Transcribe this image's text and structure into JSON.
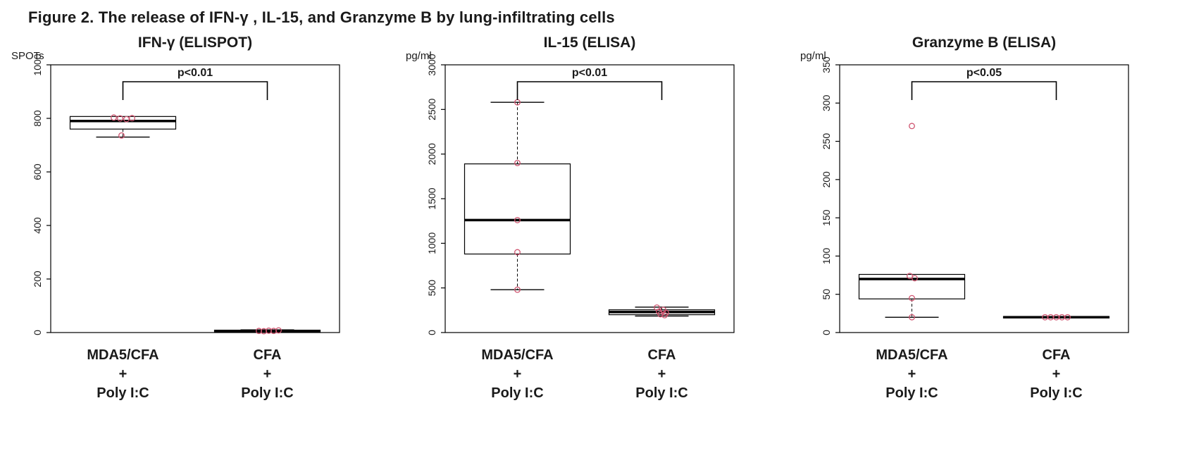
{
  "figure_title": "Figure 2. The release of IFN-γ , IL-15, and Granzyme B by lung-infiltrating cells",
  "colors": {
    "point": "#cf5570",
    "axis": "#000000",
    "text": "#1a1a1a",
    "background": "#ffffff"
  },
  "chart_data": [
    {
      "type": "boxplot",
      "title": "IFN-γ (ELISPOT)",
      "ylabel": "SPOTs",
      "ylim": [
        0,
        1000
      ],
      "yticks": [
        0,
        200,
        400,
        600,
        800,
        1000
      ],
      "p_label": "p<0.01",
      "groups": [
        {
          "label_lines": [
            "MDA5/CFA",
            "+",
            "Poly I:C"
          ],
          "stats": {
            "whisker_low": 730,
            "q1": 760,
            "median": 790,
            "q3": 807,
            "whisker_high": 807
          },
          "points": [
            803,
            800,
            797,
            801,
            736
          ],
          "dx": [
            -13,
            -4,
            5,
            13,
            -2
          ]
        },
        {
          "label_lines": [
            "CFA",
            "+",
            "Poly I:C"
          ],
          "stats": {
            "whisker_low": 2,
            "q1": 3,
            "median": 6,
            "q3": 9,
            "whisker_high": 10
          },
          "points": [
            6,
            5,
            7,
            6,
            8
          ],
          "dx": [
            -12,
            -5,
            2,
            9,
            16
          ]
        }
      ]
    },
    {
      "type": "boxplot",
      "title": "IL-15 (ELISA)",
      "ylabel": "pg/ml",
      "ylim": [
        0,
        3000
      ],
      "yticks": [
        0,
        500,
        1000,
        1500,
        2000,
        2500,
        3000
      ],
      "p_label": "p<0.01",
      "groups": [
        {
          "label_lines": [
            "MDA5/CFA",
            "+",
            "Poly I:C"
          ],
          "stats": {
            "whisker_low": 480,
            "q1": 880,
            "median": 1260,
            "q3": 1890,
            "whisker_high": 2580
          },
          "points": [
            2580,
            1900,
            1260,
            900,
            480
          ],
          "dx": [
            0,
            0,
            0,
            0,
            0
          ]
        },
        {
          "label_lines": [
            "CFA",
            "+",
            "Poly I:C"
          ],
          "stats": {
            "whisker_low": 185,
            "q1": 200,
            "median": 230,
            "q3": 255,
            "whisker_high": 285
          },
          "points": [
            280,
            255,
            235,
            220,
            205,
            195
          ],
          "dx": [
            -7,
            2,
            -4,
            6,
            -2,
            4
          ]
        }
      ]
    },
    {
      "type": "boxplot",
      "title": "Granzyme B (ELISA)",
      "ylabel": "pg/ml",
      "ylim": [
        0,
        350
      ],
      "yticks": [
        0,
        50,
        100,
        150,
        200,
        250,
        300,
        350
      ],
      "p_label": "p<0.05",
      "groups": [
        {
          "label_lines": [
            "MDA5/CFA",
            "+",
            "Poly I:C"
          ],
          "stats": {
            "whisker_low": 20,
            "q1": 44,
            "median": 70,
            "q3": 76,
            "whisker_high": 76
          },
          "points": [
            270,
            74,
            71,
            45,
            20
          ],
          "dx": [
            0,
            -3,
            4,
            0,
            0
          ]
        },
        {
          "label_lines": [
            "CFA",
            "+",
            "Poly I:C"
          ],
          "stats": {
            "whisker_low": 19,
            "q1": 19,
            "median": 20,
            "q3": 21,
            "whisker_high": 21
          },
          "points": [
            20,
            20,
            20,
            20,
            20
          ],
          "dx": [
            -16,
            -8,
            0,
            8,
            16
          ]
        }
      ]
    }
  ]
}
